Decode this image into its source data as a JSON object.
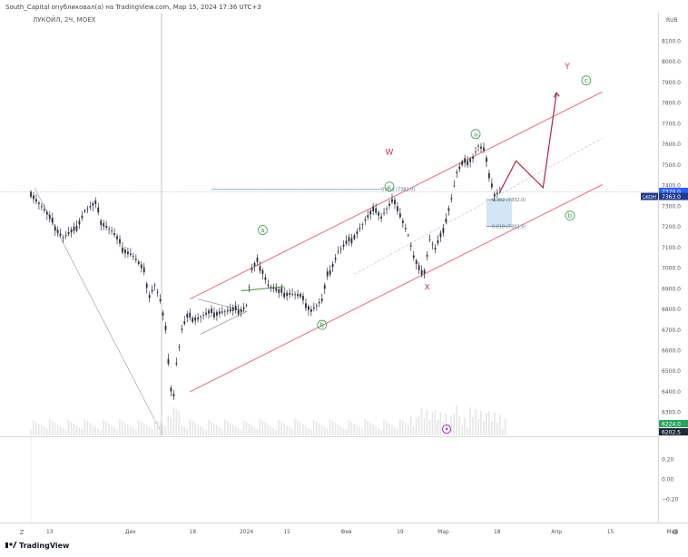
{
  "header": {
    "publisher": "South_Capital опубликовал(а) на TradingView.com, Мар 15, 2024 17:36 UTC+3"
  },
  "symbol": {
    "label": "ЛУКОЙЛ, 2Ч, MOEX",
    "ticker": "LKOH"
  },
  "currency": "RUB",
  "price_axis": {
    "ticks": [
      "8100.0",
      "8000.0",
      "7900.0",
      "7800.0",
      "7700.0",
      "7600.0",
      "7500.0",
      "7400.0",
      "7300.0",
      "7200.0",
      "7100.0",
      "7000.0",
      "6900.0",
      "6800.0",
      "6700.0",
      "6600.0",
      "6500.0",
      "6400.0",
      "6300.0"
    ],
    "badges": {
      "top": "7370.0",
      "last": "7363.0",
      "green": "6224.0",
      "dark": "6202.5"
    }
  },
  "sub_axis": {
    "ticks": [
      "0.20",
      "0.00",
      "−0.20"
    ]
  },
  "time_axis": {
    "ticks": [
      "13",
      "Дек",
      "18",
      "2024",
      "15",
      "Фев",
      "19",
      "Мар",
      "18",
      "Апр",
      "15",
      "Май"
    ]
  },
  "annotations": {
    "w": "W",
    "x": "X",
    "y": "Y",
    "circ_a_left": "a",
    "circ_b": "b",
    "circ_c_mid": "c",
    "circ_a_top": "a",
    "circ_c_top": "c",
    "circ_b_right": "b"
  },
  "fib_labels": {
    "f854": "0.854 (7382.0)",
    "f382": "0.382 (7332.0)",
    "f618": "0.618 (7202.5)"
  },
  "footer": {
    "z_label": "Z",
    "brand": "TradingView",
    "gear": "⚙"
  },
  "chart_data": {
    "type": "candlestick",
    "title": "ЛУКОЙЛ, 2Ч, MOEX",
    "ylabel": "RUB",
    "ylim": [
      6224,
      8200
    ],
    "y_ticks": [
      6300,
      6400,
      6500,
      6600,
      6700,
      6800,
      6900,
      7000,
      7100,
      7200,
      7300,
      7400,
      7500,
      7600,
      7700,
      7800,
      7900,
      8000,
      8100
    ],
    "x_ticks": [
      "13",
      "Дек",
      "18",
      "2024",
      "15",
      "Фев",
      "19",
      "Мар",
      "18",
      "Апр",
      "15",
      "Май"
    ],
    "x_tick_index": [
      7,
      37,
      60,
      80,
      95,
      117,
      137,
      153,
      173,
      195,
      215,
      238
    ],
    "close_path": [
      [
        0,
        7370
      ],
      [
        4,
        7300
      ],
      [
        8,
        7220
      ],
      [
        12,
        7150
      ],
      [
        16,
        7180
      ],
      [
        20,
        7280
      ],
      [
        24,
        7310
      ],
      [
        26,
        7230
      ],
      [
        30,
        7180
      ],
      [
        34,
        7100
      ],
      [
        38,
        7060
      ],
      [
        42,
        6980
      ],
      [
        44,
        6870
      ],
      [
        46,
        6920
      ],
      [
        48,
        6840
      ],
      [
        50,
        6700
      ],
      [
        51,
        6560
      ],
      [
        52,
        6420
      ],
      [
        53,
        6390
      ],
      [
        54,
        6540
      ],
      [
        56,
        6700
      ],
      [
        58,
        6760
      ],
      [
        62,
        6760
      ],
      [
        66,
        6780
      ],
      [
        70,
        6790
      ],
      [
        74,
        6790
      ],
      [
        78,
        6800
      ],
      [
        80,
        6820
      ],
      [
        82,
        6990
      ],
      [
        84,
        7030
      ],
      [
        86,
        6990
      ],
      [
        88,
        6920
      ],
      [
        92,
        6880
      ],
      [
        96,
        6880
      ],
      [
        100,
        6860
      ],
      [
        104,
        6800
      ],
      [
        108,
        6840
      ],
      [
        110,
        6960
      ],
      [
        114,
        7080
      ],
      [
        118,
        7130
      ],
      [
        120,
        7160
      ],
      [
        124,
        7230
      ],
      [
        128,
        7290
      ],
      [
        130,
        7250
      ],
      [
        134,
        7320
      ],
      [
        136,
        7300
      ],
      [
        140,
        7160
      ],
      [
        142,
        7050
      ],
      [
        144,
        6990
      ],
      [
        146,
        6990
      ],
      [
        148,
        7140
      ],
      [
        150,
        7090
      ],
      [
        152,
        7150
      ],
      [
        154,
        7240
      ],
      [
        156,
        7340
      ],
      [
        158,
        7460
      ],
      [
        160,
        7500
      ],
      [
        164,
        7540
      ],
      [
        166,
        7590
      ],
      [
        168,
        7570
      ],
      [
        170,
        7460
      ],
      [
        172,
        7360
      ],
      [
        174,
        7370
      ]
    ],
    "projection": [
      [
        174,
        7370
      ],
      [
        180,
        7520
      ],
      [
        190,
        7390
      ],
      [
        195,
        7850
      ]
    ],
    "fib_levels": [
      {
        "ratio": "0.854",
        "value": 7382.0
      },
      {
        "ratio": "0.382",
        "value": 7332.0
      },
      {
        "ratio": "0.618",
        "value": 7202.5
      }
    ],
    "channel": {
      "upper": [
        [
          59,
          6850
        ],
        [
          212,
          7855
        ]
      ],
      "lower": [
        [
          59,
          6400
        ],
        [
          212,
          7405
        ]
      ],
      "middle": [
        [
          120,
          6970
        ],
        [
          212,
          7630
        ]
      ]
    },
    "wave_labels": [
      {
        "text": "W",
        "x": 133,
        "y": 7550
      },
      {
        "text": "X",
        "x": 147,
        "y": 6895
      },
      {
        "text": "Y",
        "x": 199,
        "y": 7965
      },
      {
        "text": "a",
        "x": 86,
        "y": 7185
      },
      {
        "text": "b",
        "x": 108,
        "y": 6725
      },
      {
        "text": "c",
        "x": 133,
        "y": 7395
      },
      {
        "text": "a",
        "x": 165,
        "y": 7650
      },
      {
        "text": "c",
        "x": 206,
        "y": 7910
      },
      {
        "text": "b",
        "x": 200,
        "y": 7255
      }
    ],
    "last_price": 7363.0,
    "sub_indicator": {
      "ylim": [
        -0.25,
        0.25
      ],
      "ticks": [
        0.2,
        0.0,
        -0.2
      ]
    }
  }
}
